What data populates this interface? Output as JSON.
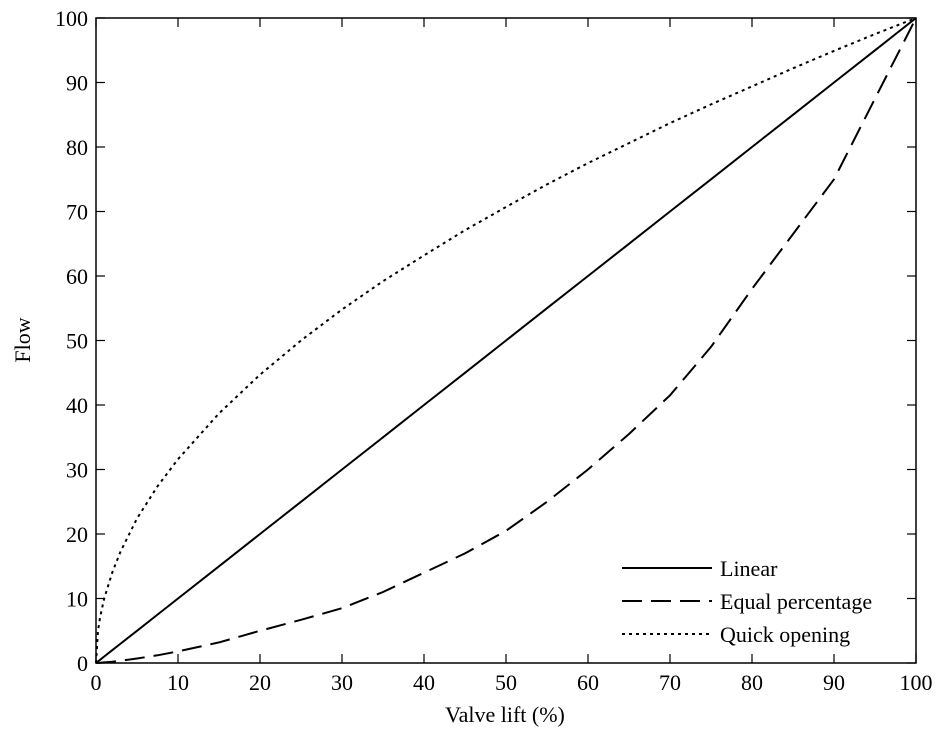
{
  "chart_data": {
    "type": "line",
    "xlabel": "Valve lift (%)",
    "ylabel": "Flow",
    "xlim": [
      0,
      100
    ],
    "ylim": [
      0,
      100
    ],
    "xticks": [
      "0",
      "10",
      "20",
      "30",
      "40",
      "50",
      "60",
      "70",
      "80",
      "90",
      "100"
    ],
    "yticks": [
      "0",
      "10",
      "20",
      "30",
      "40",
      "50",
      "60",
      "70",
      "80",
      "90",
      "100"
    ],
    "grid": false,
    "legend_position": "bottom-right",
    "x": [
      0,
      0.25,
      0.5,
      1,
      2,
      3,
      5,
      7.5,
      10,
      15,
      20,
      25,
      30,
      35,
      40,
      45,
      50,
      55,
      60,
      65,
      70,
      75,
      80,
      85,
      90,
      95,
      100
    ],
    "series": [
      {
        "name": "Linear",
        "style": "solid",
        "values": [
          0,
          0.25,
          0.5,
          1,
          2,
          3,
          5,
          7.5,
          10,
          15,
          20,
          25,
          30,
          35,
          40,
          45,
          50,
          55,
          60,
          65,
          70,
          75,
          80,
          85,
          90,
          95,
          100
        ]
      },
      {
        "name": "Equal percentage",
        "style": "dashed",
        "values": [
          0,
          0.01,
          0.03,
          0.1,
          0.2,
          0.35,
          0.7,
          1.2,
          1.8,
          3.2,
          5,
          6.7,
          8.5,
          11,
          14,
          17,
          20.5,
          25,
          30,
          35.5,
          41.5,
          49,
          58,
          66.5,
          75,
          87.5,
          100
        ]
      },
      {
        "name": "Quick opening",
        "style": "dotted",
        "values": [
          0,
          5,
          7.1,
          10,
          14.1,
          17.3,
          22.4,
          27.4,
          31.6,
          38.7,
          44.7,
          50,
          54.8,
          59.2,
          63.2,
          67.1,
          70.7,
          74.2,
          77.5,
          80.6,
          83.7,
          86.6,
          89.4,
          92.2,
          94.9,
          97.5,
          100
        ]
      }
    ]
  },
  "colors": {
    "line": "#000000",
    "background": "#ffffff"
  }
}
